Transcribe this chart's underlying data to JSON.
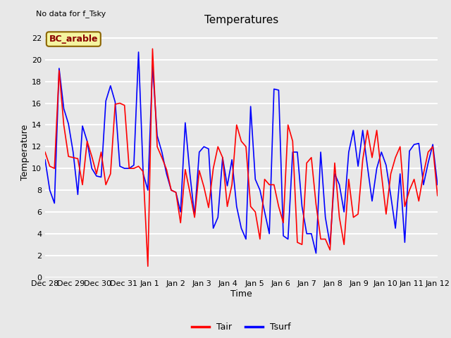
{
  "title": "Temperatures",
  "xlabel": "Time",
  "ylabel": "Temperature",
  "top_left_note": "No data for f_Tsky",
  "bc_label": "BC_arable",
  "ylim": [
    0,
    23
  ],
  "yticks": [
    0,
    2,
    4,
    6,
    8,
    10,
    12,
    14,
    16,
    18,
    20,
    22
  ],
  "xtick_labels": [
    "Dec 28",
    "Dec 29",
    "Dec 30",
    "Dec 31",
    "Jan 1",
    "Jan 2",
    "Jan 3",
    "Jan 4",
    "Jan 5",
    "Jan 6",
    "Jan 7",
    "Jan 8",
    "Jan 9",
    "Jan 10",
    "Jan 11",
    "Jan 12"
  ],
  "tair_color": "#FF0000",
  "tsurf_color": "#0000FF",
  "bg_color": "#E8E8E8",
  "plot_bg_color": "#E8E8E8",
  "grid_color": "#FFFFFF",
  "line_width": 1.2,
  "tair": [
    11.5,
    10.2,
    10.0,
    19.0,
    14.0,
    11.1,
    11.0,
    10.9,
    8.5,
    12.5,
    11.1,
    9.5,
    11.5,
    8.5,
    9.5,
    15.9,
    16.0,
    15.8,
    10.0,
    10.0,
    10.2,
    9.7,
    1.0,
    21.0,
    12.0,
    11.0,
    9.9,
    8.0,
    7.8,
    5.0,
    9.9,
    7.8,
    5.5,
    9.8,
    8.3,
    6.4,
    10.0,
    12.0,
    11.0,
    6.5,
    8.5,
    14.0,
    12.5,
    12.0,
    6.5,
    6.0,
    3.5,
    9.0,
    8.5,
    8.5,
    6.5,
    5.0,
    14.0,
    12.5,
    3.2,
    3.0,
    10.5,
    11.0,
    6.7,
    3.5,
    3.5,
    2.5,
    10.5,
    5.5,
    3.0,
    9.0,
    5.5,
    5.8,
    10.8,
    13.5,
    11.0,
    13.5,
    9.5,
    5.8,
    9.5,
    11.0,
    12.0,
    6.5,
    8.0,
    9.0,
    7.0,
    9.5,
    11.5,
    12.0,
    7.5
  ],
  "tsurf": [
    10.8,
    8.0,
    6.8,
    19.2,
    15.5,
    14.1,
    11.5,
    7.6,
    13.9,
    12.5,
    10.0,
    9.3,
    9.2,
    16.2,
    17.6,
    16.1,
    10.2,
    10.0,
    10.0,
    10.3,
    20.7,
    9.5,
    8.0,
    19.5,
    13.0,
    11.5,
    9.5,
    8.0,
    7.8,
    6.0,
    14.2,
    9.5,
    5.6,
    11.5,
    12.0,
    11.8,
    4.5,
    5.5,
    11.0,
    8.4,
    10.8,
    6.5,
    4.5,
    3.5,
    15.7,
    9.0,
    8.0,
    6.0,
    4.0,
    17.3,
    17.2,
    3.8,
    3.5,
    11.5,
    11.5,
    6.5,
    4.0,
    4.0,
    2.2,
    11.5,
    5.5,
    3.0,
    9.5,
    8.5,
    6.0,
    11.5,
    13.5,
    10.2,
    13.5,
    10.2,
    7.0,
    10.0,
    11.5,
    10.3,
    7.5,
    4.5,
    9.5,
    3.2,
    11.6,
    12.2,
    12.3,
    8.5,
    10.5,
    12.2,
    8.5
  ]
}
